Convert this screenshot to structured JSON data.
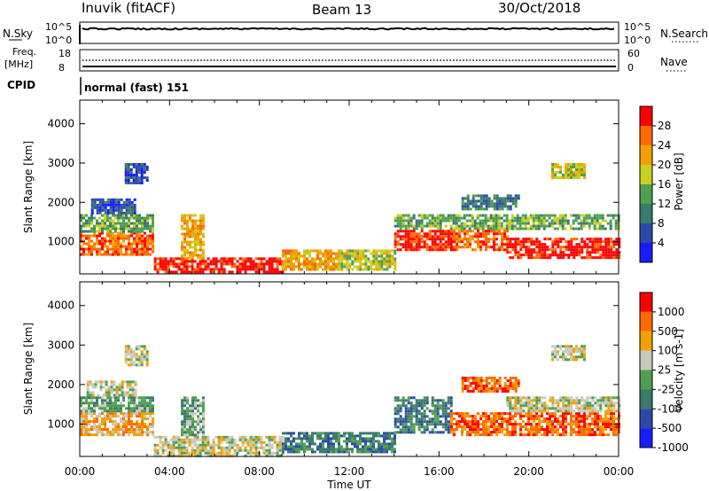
{
  "header": {
    "station": "Inuvik (fitACF)",
    "beam": "Beam 13",
    "date": "30/Oct/2018"
  },
  "top_panels": {
    "nsky_label": "N.Sky",
    "nsearch_label": "N.Search",
    "nsky_ticks": [
      "10^5",
      "10^0"
    ],
    "nsearch_ticks": [
      "10^5",
      "10^0"
    ],
    "freq_label": "Freq.",
    "freq_unit": "[MHz]",
    "freq_ticks": [
      "18",
      "8"
    ],
    "nave_label": "Nave",
    "nave_ticks": [
      "60",
      "0"
    ],
    "cpid_label": "CPID",
    "cpid_value": "normal (fast) 151"
  },
  "time_axis": {
    "label": "Time UT",
    "ticks": [
      "00:00",
      "04:00",
      "08:00",
      "12:00",
      "16:00",
      "20:00",
      "00:00"
    ]
  },
  "chart_data": [
    {
      "type": "heatmap",
      "name": "power",
      "ylabel": "Slant Range [km]",
      "y_ticks": [
        1000,
        2000,
        3000,
        4000
      ],
      "ylim": [
        180,
        4600
      ],
      "xlim": [
        0,
        24
      ],
      "colorbar_label": "Power [dB]",
      "colorbar_ticks": [
        "4",
        "8",
        "12",
        "16",
        "20",
        "24",
        "28"
      ],
      "colors": [
        "#1a1aff",
        "#2a4aa8",
        "#3a7a6a",
        "#4ea050",
        "#c8d020",
        "#f0a000",
        "#ff6a00",
        "#ff0000"
      ],
      "bands": [
        {
          "t0": 0.0,
          "t1": 3.3,
          "r0": 700,
          "r1": 1250,
          "level": 6
        },
        {
          "t0": 0.0,
          "t1": 3.3,
          "r0": 1250,
          "r1": 1700,
          "level": 3
        },
        {
          "t0": 0.5,
          "t1": 2.5,
          "r0": 1700,
          "r1": 2100,
          "level": 1
        },
        {
          "t0": 2.0,
          "t1": 3.0,
          "r0": 2500,
          "r1": 3000,
          "level": 1
        },
        {
          "t0": 3.3,
          "t1": 9.0,
          "r0": 200,
          "r1": 600,
          "level": 7
        },
        {
          "t0": 4.5,
          "t1": 5.5,
          "r0": 600,
          "r1": 1700,
          "level": 5
        },
        {
          "t0": 9.0,
          "t1": 11.5,
          "r0": 300,
          "r1": 800,
          "level": 5
        },
        {
          "t0": 11.5,
          "t1": 14.0,
          "r0": 300,
          "r1": 800,
          "level": 4
        },
        {
          "t0": 14.0,
          "t1": 16.5,
          "r0": 800,
          "r1": 1300,
          "level": 7
        },
        {
          "t0": 14.0,
          "t1": 24.0,
          "r0": 1300,
          "r1": 1700,
          "level": 3
        },
        {
          "t0": 16.5,
          "t1": 19.0,
          "r0": 800,
          "r1": 1300,
          "level": 6
        },
        {
          "t0": 19.0,
          "t1": 24.0,
          "r0": 600,
          "r1": 1100,
          "level": 7
        },
        {
          "t0": 17.0,
          "t1": 19.5,
          "r0": 1800,
          "r1": 2200,
          "level": 2
        },
        {
          "t0": 21.0,
          "t1": 22.5,
          "r0": 2600,
          "r1": 3000,
          "level": 4
        }
      ]
    },
    {
      "type": "heatmap",
      "name": "velocity",
      "ylabel": "Slant Range [km]",
      "y_ticks": [
        1000,
        2000,
        3000,
        4000
      ],
      "ylim": [
        180,
        4600
      ],
      "xlim": [
        0,
        24
      ],
      "colorbar_label": "Velocity [m s-1]",
      "colorbar_ticks": [
        "1000",
        "500",
        "100",
        "25",
        "-25",
        "-100",
        "-500",
        "-1000"
      ],
      "colors": [
        "#1a1aff",
        "#2a4aa8",
        "#3a7a6a",
        "#4ea050",
        "#c8c8c0",
        "#f0a000",
        "#ff6a00",
        "#ff0000"
      ],
      "bands": [
        {
          "t0": 0.0,
          "t1": 3.3,
          "r0": 700,
          "r1": 1300,
          "level": 5
        },
        {
          "t0": 0.0,
          "t1": 3.3,
          "r0": 1300,
          "r1": 1700,
          "level": 3
        },
        {
          "t0": 0.3,
          "t1": 2.5,
          "r0": 1700,
          "r1": 2100,
          "level": 4
        },
        {
          "t0": 2.0,
          "t1": 3.0,
          "r0": 2500,
          "r1": 3000,
          "level": 4
        },
        {
          "t0": 3.3,
          "t1": 9.0,
          "r0": 200,
          "r1": 700,
          "level": 4
        },
        {
          "t0": 4.5,
          "t1": 5.5,
          "r0": 700,
          "r1": 1700,
          "level": 3
        },
        {
          "t0": 9.0,
          "t1": 14.0,
          "r0": 300,
          "r1": 800,
          "level": 2
        },
        {
          "t0": 14.0,
          "t1": 16.5,
          "r0": 800,
          "r1": 1700,
          "level": 2
        },
        {
          "t0": 16.5,
          "t1": 24.0,
          "r0": 700,
          "r1": 1300,
          "level": 6
        },
        {
          "t0": 19.0,
          "t1": 24.0,
          "r0": 1300,
          "r1": 1700,
          "level": 4
        },
        {
          "t0": 17.0,
          "t1": 19.5,
          "r0": 1800,
          "r1": 2200,
          "level": 6
        },
        {
          "t0": 21.0,
          "t1": 22.5,
          "r0": 2600,
          "r1": 3000,
          "level": 4
        }
      ]
    }
  ]
}
